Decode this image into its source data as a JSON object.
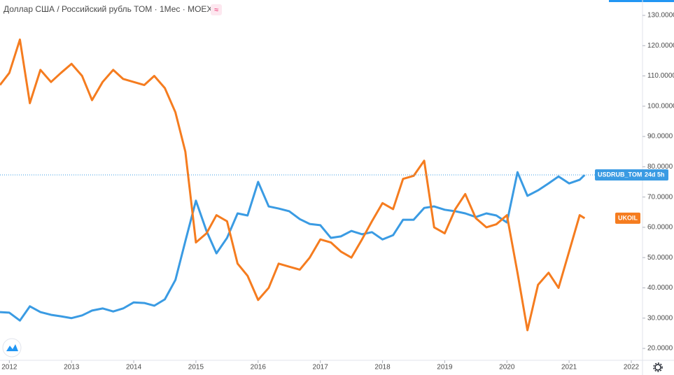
{
  "chart_data": {
    "type": "line",
    "title": "Доллар США / Российский рубль ТОМ · 1Мес · MOEX",
    "countdown": "24d 5h",
    "x": [
      2011.85,
      2012,
      2012.17,
      2012.33,
      2012.5,
      2012.67,
      2012.83,
      2013,
      2013.17,
      2013.33,
      2013.5,
      2013.67,
      2013.83,
      2014,
      2014.17,
      2014.33,
      2014.5,
      2014.67,
      2014.83,
      2015,
      2015.17,
      2015.33,
      2015.5,
      2015.67,
      2015.83,
      2016,
      2016.17,
      2016.33,
      2016.5,
      2016.67,
      2016.83,
      2017,
      2017.17,
      2017.33,
      2017.5,
      2017.67,
      2017.83,
      2018,
      2018.17,
      2018.33,
      2018.5,
      2018.67,
      2018.83,
      2019,
      2019.17,
      2019.33,
      2019.5,
      2019.67,
      2019.83,
      2020,
      2020.17,
      2020.33,
      2020.5,
      2020.67,
      2020.83,
      2021,
      2021.17,
      2021.25
    ],
    "series": [
      {
        "name": "USDRUB_TOM",
        "color": "#3a9be3",
        "values": [
          32.0,
          31.8,
          29.2,
          33.9,
          32.0,
          31.1,
          30.6,
          30.0,
          30.9,
          32.5,
          33.2,
          32.2,
          33.2,
          35.2,
          35.0,
          34.1,
          36.2,
          42.6,
          55.4,
          68.8,
          58.8,
          51.4,
          56.5,
          64.6,
          63.9,
          75.0,
          66.9,
          66.2,
          65.3,
          62.7,
          61.1,
          60.7,
          56.5,
          57.0,
          58.8,
          57.7,
          58.4,
          56.0,
          57.4,
          62.5,
          62.5,
          66.4,
          66.9,
          65.8,
          65.3,
          64.6,
          63.4,
          64.6,
          63.9,
          61.6,
          78.2,
          70.4,
          72.2,
          74.5,
          76.8,
          74.5,
          75.7,
          77.3
        ]
      },
      {
        "name": "UKOIL",
        "color": "#f57c1f",
        "values": [
          107,
          111,
          122,
          101,
          112,
          108,
          111,
          114,
          110,
          102,
          108,
          112,
          109,
          108,
          107,
          110,
          106,
          98,
          85,
          55,
          58,
          64,
          62,
          48,
          44,
          36,
          40,
          48,
          47,
          46,
          50,
          56,
          55,
          52,
          50,
          56,
          62,
          68,
          66,
          76,
          77,
          82,
          60,
          58,
          66,
          71,
          63,
          60,
          61,
          64,
          45,
          26,
          41,
          45,
          40,
          52,
          64,
          63
        ]
      }
    ],
    "xlim": [
      2011.85,
      2022.18
    ],
    "xticks": [
      2012,
      2013,
      2014,
      2015,
      2016,
      2017,
      2018,
      2019,
      2020,
      2021,
      2022
    ],
    "ylim": [
      16.07,
      135.08
    ],
    "yticks": [
      {
        "value": 20,
        "label": "20.0000"
      },
      {
        "value": 30,
        "label": "30.0000"
      },
      {
        "value": 40,
        "label": "40.0000"
      },
      {
        "value": 50,
        "label": "50.0000"
      },
      {
        "value": 60,
        "label": "60.0000"
      },
      {
        "value": 70,
        "label": "70.0000"
      },
      {
        "value": 80,
        "label": "80.0000"
      },
      {
        "value": 90,
        "label": "90.0000"
      },
      {
        "value": 100,
        "label": "100.0000"
      },
      {
        "value": 110,
        "label": "110.0000"
      },
      {
        "value": 120,
        "label": "120.0000"
      },
      {
        "value": 130,
        "label": "130.0000"
      }
    ],
    "grid": false
  }
}
